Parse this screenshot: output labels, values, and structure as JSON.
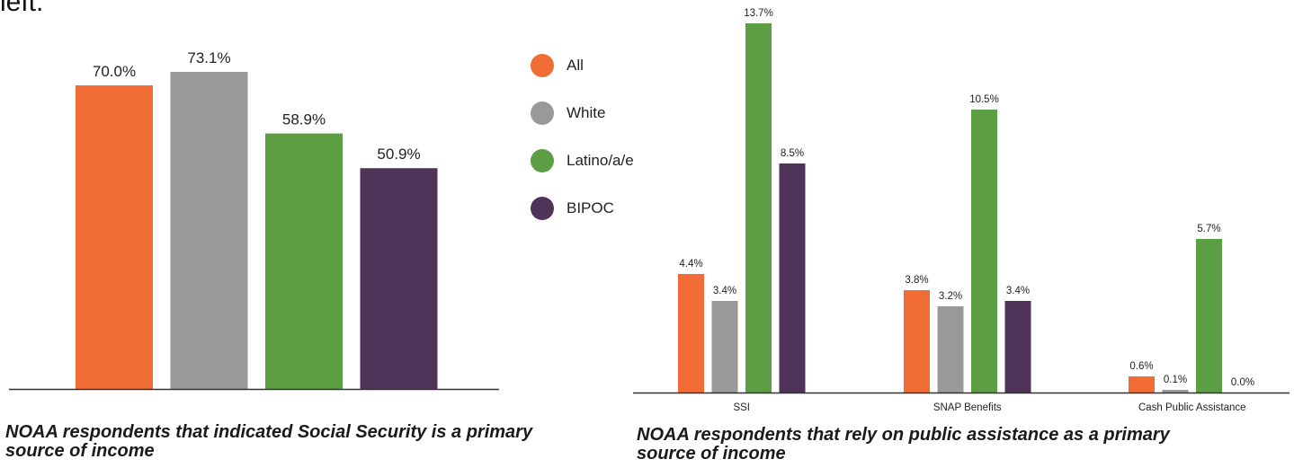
{
  "page": {
    "top_fragment": "left.",
    "left_caption": "NOAA respondents that indicated Social Security is a primary source of income",
    "right_caption": "NOAA respondents that rely on public assistance as a primary source of income"
  },
  "colors": {
    "All": "#F26D35",
    "White": "#999999",
    "Latino/a/e": "#5C9E44",
    "BIPOC": "#4F3358",
    "axis": "#333333"
  },
  "legend": {
    "items": [
      {
        "label": "All",
        "color": "#F26D35"
      },
      {
        "label": "White",
        "color": "#999999"
      },
      {
        "label": "Latino/a/e",
        "color": "#5C9E44"
      },
      {
        "label": "BIPOC",
        "color": "#4F3358"
      }
    ]
  },
  "chart_data": [
    {
      "type": "bar",
      "title": "",
      "categories": [
        "All",
        "White",
        "Latino/a/e",
        "BIPOC"
      ],
      "values": [
        70.0,
        73.1,
        58.9,
        50.9
      ],
      "labels": [
        "70.0%",
        "73.1%",
        "58.9%",
        "50.9%"
      ],
      "colors": [
        "#F26D35",
        "#999999",
        "#5C9E44",
        "#4F3358"
      ],
      "ylim": [
        0,
        80
      ],
      "grid": false
    },
    {
      "type": "bar",
      "title": "",
      "categories": [
        "SSI",
        "SNAP Benefits",
        "Cash Public Assistance"
      ],
      "series": [
        {
          "name": "All",
          "values": [
            4.4,
            3.8,
            0.6
          ],
          "labels": [
            "4.4%",
            "3.8%",
            "0.6%"
          ],
          "color": "#F26D35"
        },
        {
          "name": "White",
          "values": [
            3.4,
            3.2,
            0.1
          ],
          "labels": [
            "3.4%",
            "3.2%",
            "0.1%"
          ],
          "color": "#999999"
        },
        {
          "name": "Latino/a/e",
          "values": [
            13.7,
            10.5,
            5.7
          ],
          "labels": [
            "13.7%",
            "10.5%",
            "5.7%"
          ],
          "color": "#5C9E44"
        },
        {
          "name": "BIPOC",
          "values": [
            8.5,
            3.4,
            0.0
          ],
          "labels": [
            "8.5%",
            "3.4%",
            "0.0%"
          ],
          "color": "#4F3358"
        }
      ],
      "ylim": [
        0,
        14
      ],
      "grid": false,
      "legend": "left"
    }
  ]
}
